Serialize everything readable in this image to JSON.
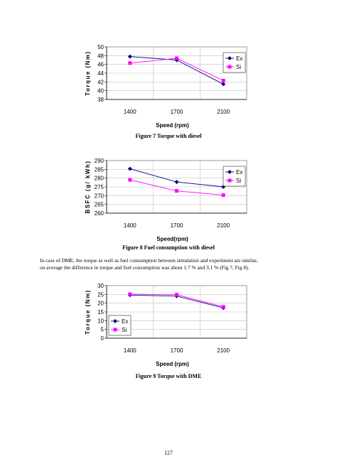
{
  "figures": [
    {
      "caption": "Figure 7 Torque with diesel",
      "chart_data": {
        "type": "line",
        "categories": [
          "1400",
          "1700",
          "2100"
        ],
        "series": [
          {
            "name": "Ex",
            "values": [
              47.8,
              47.0,
              41.5
            ],
            "color": "#000080",
            "marker": "diamond"
          },
          {
            "name": "Si",
            "values": [
              46.3,
              47.4,
              42.3
            ],
            "color": "#ff00ff",
            "marker": "square"
          }
        ],
        "xlabel": "Speed (rpm)",
        "ylabel": "Torque (Nm)",
        "ylim": [
          38,
          50
        ],
        "yticks": [
          "50",
          "48",
          "46",
          "44",
          "42",
          "40",
          "38"
        ],
        "grid": true,
        "legend": "right"
      }
    },
    {
      "caption": "Figure 8 Fuel consumption with diesel",
      "chart_data": {
        "type": "line",
        "categories": [
          "1400",
          "1700",
          "2100"
        ],
        "series": [
          {
            "name": "Ex",
            "values": [
              285.3,
              277.8,
              275.0
            ],
            "color": "#000080",
            "marker": "diamond"
          },
          {
            "name": "Si",
            "values": [
              279.0,
              272.7,
              270.3
            ],
            "color": "#ff00ff",
            "marker": "square"
          }
        ],
        "xlabel": "Speed(rpm)",
        "ylabel": "BSFC (g/ kWh)",
        "ylim": [
          260,
          290
        ],
        "yticks": [
          "290",
          "285",
          "280",
          "275",
          "270",
          "265",
          "260"
        ],
        "grid": true,
        "legend": "right"
      }
    },
    {
      "caption": "Figure 9 Torque with DME",
      "chart_data": {
        "type": "line",
        "categories": [
          "1400",
          "1700",
          "2100"
        ],
        "series": [
          {
            "name": "Ex",
            "values": [
              24.6,
              24.0,
              17.3
            ],
            "color": "#000080",
            "marker": "diamond"
          },
          {
            "name": "Si",
            "values": [
              25.1,
              24.8,
              17.9
            ],
            "color": "#ff00ff",
            "marker": "square"
          }
        ],
        "xlabel": "Speed (rpm)",
        "ylabel": "Torque (Nm)",
        "ylim": [
          0,
          30
        ],
        "yticks": [
          "30",
          "25",
          "20",
          "15",
          "10",
          "5",
          "0"
        ],
        "grid": true,
        "legend": "left"
      }
    }
  ],
  "paragraph_line1": "In case of DME, the torque as well as fuel consumption between simulation and experiment are similar,",
  "paragraph_line2": "on average the difference in torque and fuel consumption was about 1.7 % and 3.1 % (Fig 7, Fig 8).",
  "page_number": "127"
}
